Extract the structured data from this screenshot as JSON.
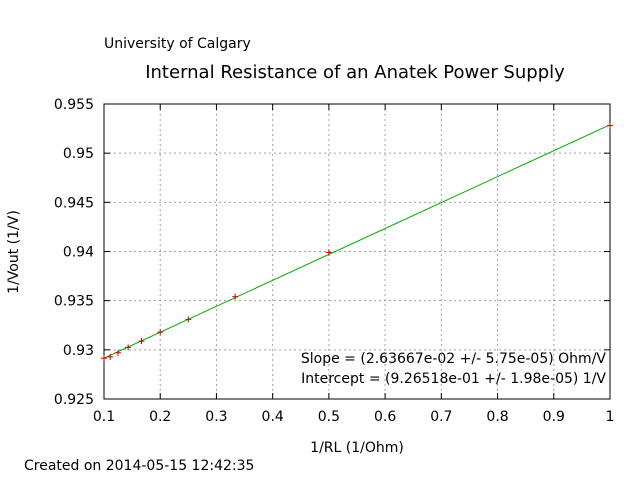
{
  "chart_data": {
    "type": "scatter",
    "institution": "University of Calgary",
    "title": "Internal Resistance of an Anatek Power Supply",
    "xlabel": "1/RL (1/Ohm)",
    "ylabel": "1/Vout (1/V)",
    "xlim": [
      0.1,
      1.0
    ],
    "ylim": [
      0.925,
      0.955
    ],
    "xticks": [
      "0.1",
      "0.2",
      "0.3",
      "0.4",
      "0.5",
      "0.6",
      "0.7",
      "0.8",
      "0.9",
      "1"
    ],
    "yticks": [
      "0.925",
      "0.93",
      "0.935",
      "0.94",
      "0.945",
      "0.95",
      "0.955"
    ],
    "grid": true,
    "series": [
      {
        "color": "#cc0000",
        "marker": "plus",
        "x": [
          0.1,
          0.1111,
          0.125,
          0.1429,
          0.1667,
          0.2,
          0.25,
          0.3333,
          0.5,
          1.0
        ],
        "y": [
          0.92915,
          0.92928,
          0.9297,
          0.93025,
          0.93088,
          0.9318,
          0.9331,
          0.9354,
          0.9399,
          0.9528
        ]
      }
    ],
    "fit": {
      "color": "#00aa00",
      "slope": 0.0263667,
      "intercept": 0.926518,
      "slope_label": "Slope = (2.63667e-02 +/- 5.75e-05) Ohm/V",
      "intercept_label": "Intercept = (9.26518e-01 +/- 1.98e-05) 1/V"
    }
  },
  "footer": "Created on 2014-05-15 12:42:35"
}
